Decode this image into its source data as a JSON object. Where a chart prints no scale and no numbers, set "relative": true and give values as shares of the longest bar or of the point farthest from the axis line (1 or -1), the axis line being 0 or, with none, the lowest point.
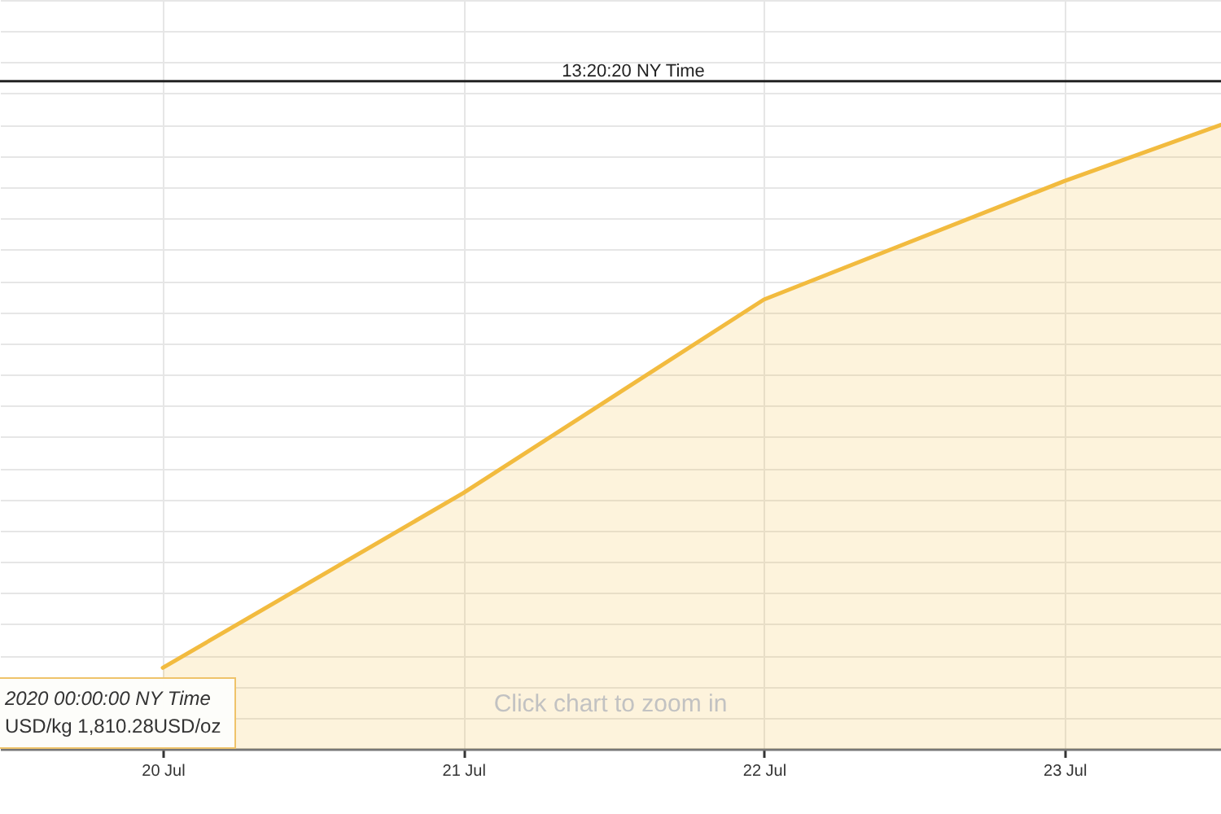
{
  "chart_data": {
    "type": "area",
    "title": "13:20:20 NY Time",
    "x": [
      "2020-07-20",
      "2020-07-21",
      "2020-07-22",
      "2020-07-23",
      "2020-07-23T12:30"
    ],
    "series": [
      {
        "color": "#f2bb3f",
        "values": [
          0.13,
          0.41,
          0.72,
          0.91,
          1.0
        ]
      }
    ],
    "relative": true,
    "xlim": [
      "2020-07-19T11:00",
      "2020-07-23T12:30"
    ],
    "xticks": [
      {
        "value": "2020-07-20",
        "label": "20 Jul"
      },
      {
        "value": "2020-07-21",
        "label": "21 Jul"
      },
      {
        "value": "2020-07-22",
        "label": "22 Jul"
      },
      {
        "value": "2020-07-23",
        "label": "23 Jul"
      }
    ],
    "grid": true,
    "ref_lines": [
      {
        "axis": "y",
        "value": 1.07,
        "color": "#222222"
      }
    ],
    "annotations": [
      "Click chart to zoom in",
      "2020 00:00:00 NY Time",
      "USD/kg 1,810.28USD/oz"
    ]
  }
}
